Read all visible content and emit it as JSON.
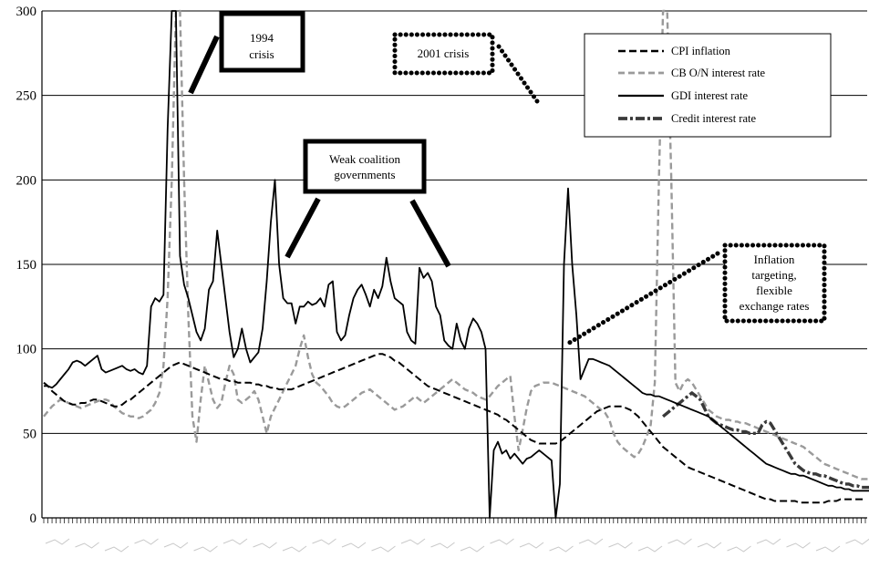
{
  "chart_data": {
    "type": "line",
    "title": "",
    "xlabel": "",
    "ylabel": "",
    "ylim": [
      0,
      300
    ],
    "yticks": [
      0,
      50,
      100,
      150,
      200,
      250,
      300
    ],
    "grid": "horizontal",
    "legend_position": "top-right",
    "n_points": 200,
    "series": [
      {
        "name": "CPI inflation",
        "style": "dashed-black",
        "color": "#000000",
        "values": [
          80,
          78,
          75,
          73,
          71,
          69,
          68,
          67,
          67,
          68,
          68,
          69,
          70,
          70,
          69,
          68,
          67,
          66,
          66,
          67,
          69,
          70,
          72,
          74,
          76,
          78,
          80,
          82,
          84,
          86,
          88,
          90,
          91,
          92,
          91,
          90,
          89,
          88,
          87,
          86,
          85,
          84,
          83,
          82,
          82,
          81,
          81,
          80,
          80,
          80,
          80,
          79,
          79,
          78,
          78,
          77,
          77,
          76,
          76,
          76,
          76,
          77,
          78,
          79,
          80,
          81,
          82,
          83,
          84,
          85,
          86,
          87,
          88,
          89,
          90,
          91,
          92,
          93,
          94,
          95,
          96,
          97,
          97,
          96,
          95,
          93,
          92,
          90,
          88,
          86,
          84,
          82,
          80,
          78,
          77,
          76,
          75,
          74,
          73,
          72,
          71,
          70,
          69,
          68,
          67,
          66,
          65,
          64,
          63,
          62,
          61,
          59,
          58,
          56,
          54,
          52,
          50,
          48,
          46,
          45,
          44,
          44,
          44,
          44,
          44,
          45,
          47,
          49,
          51,
          53,
          55,
          57,
          59,
          61,
          63,
          64,
          65,
          66,
          66,
          66,
          66,
          65,
          64,
          62,
          60,
          57,
          54,
          51,
          48,
          45,
          42,
          40,
          38,
          36,
          34,
          32,
          30,
          29,
          28,
          27,
          26,
          25,
          24,
          23,
          22,
          21,
          20,
          19,
          18,
          17,
          16,
          15,
          14,
          13,
          12,
          11,
          11,
          10,
          10,
          10,
          10,
          10,
          10,
          9,
          9,
          9,
          9,
          9,
          9,
          9,
          10,
          10,
          10,
          11,
          11,
          11,
          11,
          11,
          11,
          11
        ]
      },
      {
        "name": "CB O/N interest rate",
        "style": "dashed-grey",
        "color": "#9a9a9a",
        "values": [
          60,
          63,
          66,
          68,
          70,
          69,
          68,
          67,
          66,
          65,
          66,
          67,
          68,
          69,
          70,
          70,
          69,
          66,
          64,
          62,
          61,
          60,
          60,
          59,
          60,
          62,
          64,
          68,
          74,
          90,
          130,
          200,
          300,
          300,
          200,
          120,
          60,
          45,
          70,
          90,
          80,
          70,
          65,
          68,
          80,
          90,
          85,
          70,
          68,
          70,
          72,
          75,
          70,
          60,
          50,
          60,
          65,
          70,
          75,
          80,
          85,
          90,
          100,
          108,
          95,
          85,
          80,
          78,
          75,
          72,
          68,
          66,
          65,
          66,
          68,
          70,
          72,
          74,
          75,
          76,
          74,
          72,
          70,
          68,
          66,
          64,
          65,
          66,
          68,
          70,
          72,
          70,
          68,
          70,
          72,
          74,
          76,
          78,
          80,
          82,
          80,
          78,
          76,
          75,
          74,
          72,
          71,
          70,
          72,
          75,
          78,
          80,
          82,
          84,
          60,
          40,
          52,
          65,
          75,
          78,
          79,
          80,
          80,
          80,
          79,
          78,
          77,
          76,
          75,
          74,
          73,
          72,
          70,
          68,
          66,
          64,
          62,
          58,
          50,
          45,
          42,
          40,
          38,
          36,
          38,
          42,
          48,
          55,
          80,
          200,
          300,
          300,
          200,
          80,
          75,
          80,
          82,
          80,
          76,
          72,
          68,
          64,
          62,
          60,
          59,
          58,
          58,
          57,
          57,
          56,
          56,
          55,
          54,
          53,
          52,
          51,
          50,
          49,
          48,
          47,
          46,
          45,
          44,
          43,
          42,
          40,
          38,
          36,
          34,
          32,
          31,
          30,
          29,
          28,
          27,
          26,
          25,
          24,
          23,
          23,
          23,
          23,
          23,
          23,
          23
        ]
      },
      {
        "name": "GDI interest rate",
        "style": "solid-black",
        "color": "#000000",
        "values": [
          78,
          78,
          77,
          79,
          82,
          85,
          88,
          92,
          93,
          92,
          90,
          92,
          94,
          96,
          88,
          86,
          87,
          88,
          89,
          90,
          88,
          87,
          88,
          86,
          85,
          90,
          125,
          130,
          128,
          132,
          230,
          320,
          300,
          155,
          138,
          130,
          120,
          110,
          105,
          112,
          135,
          140,
          170,
          150,
          130,
          110,
          95,
          100,
          112,
          100,
          92,
          95,
          98,
          112,
          140,
          175,
          200,
          150,
          130,
          127,
          127,
          115,
          125,
          125,
          128,
          126,
          127,
          130,
          125,
          138,
          140,
          110,
          105,
          108,
          120,
          130,
          135,
          138,
          132,
          125,
          135,
          130,
          137,
          154,
          140,
          130,
          128,
          126,
          110,
          105,
          103,
          148,
          142,
          145,
          140,
          125,
          120,
          105,
          102,
          100,
          115,
          105,
          100,
          112,
          118,
          115,
          110,
          100,
          0,
          40,
          45,
          38,
          40,
          35,
          38,
          35,
          32,
          35,
          36,
          38,
          40,
          38,
          36,
          34,
          0,
          20,
          150,
          195,
          150,
          120,
          82,
          88,
          94,
          94,
          93,
          92,
          91,
          90,
          88,
          86,
          84,
          82,
          80,
          78,
          76,
          74,
          73,
          73,
          72,
          72,
          71,
          70,
          69,
          68,
          67,
          66,
          65,
          64,
          63,
          62,
          61,
          60,
          58,
          56,
          54,
          52,
          50,
          48,
          46,
          44,
          42,
          40,
          38,
          36,
          34,
          32,
          31,
          30,
          29,
          28,
          27,
          26,
          26,
          25,
          25,
          24,
          23,
          22,
          21,
          20,
          19,
          19,
          18,
          18,
          17,
          17,
          16,
          16,
          16,
          16,
          16
        ]
      },
      {
        "name": "Credit interest rate",
        "style": "thick-dashdot",
        "color": "#3a3a3a",
        "values": [
          null,
          null,
          null,
          null,
          null,
          null,
          null,
          null,
          null,
          null,
          null,
          null,
          null,
          null,
          null,
          null,
          null,
          null,
          null,
          null,
          null,
          null,
          null,
          null,
          null,
          null,
          null,
          null,
          null,
          null,
          null,
          null,
          null,
          null,
          null,
          null,
          null,
          null,
          null,
          null,
          null,
          null,
          null,
          null,
          null,
          null,
          null,
          null,
          null,
          null,
          null,
          null,
          null,
          null,
          null,
          null,
          null,
          null,
          null,
          null,
          null,
          null,
          null,
          null,
          null,
          null,
          null,
          null,
          null,
          null,
          null,
          null,
          null,
          null,
          null,
          null,
          null,
          null,
          null,
          null,
          null,
          null,
          null,
          null,
          null,
          null,
          null,
          null,
          null,
          null,
          null,
          null,
          null,
          null,
          null,
          null,
          null,
          null,
          null,
          null,
          null,
          null,
          null,
          null,
          null,
          null,
          null,
          null,
          null,
          null,
          null,
          null,
          null,
          null,
          null,
          null,
          null,
          null,
          null,
          null,
          null,
          null,
          null,
          null,
          null,
          null,
          null,
          null,
          null,
          null,
          null,
          null,
          null,
          null,
          null,
          null,
          null,
          null,
          null,
          null,
          null,
          null,
          null,
          null,
          null,
          null,
          null,
          null,
          null,
          null,
          60,
          62,
          64,
          66,
          68,
          70,
          72,
          74,
          72,
          70,
          65,
          60,
          58,
          56,
          55,
          54,
          53,
          52,
          52,
          51,
          51,
          50,
          50,
          50,
          55,
          57,
          56,
          52,
          48,
          44,
          40,
          36,
          32,
          30,
          28,
          27,
          26,
          26,
          25,
          25,
          24,
          23,
          22,
          21,
          20,
          20,
          19,
          19,
          18,
          18,
          18,
          18,
          24,
          24,
          23,
          23,
          22,
          22,
          22
        ]
      }
    ],
    "annotations": [
      {
        "id": "1994",
        "lines": [
          "1994",
          "crisis"
        ]
      },
      {
        "id": "2001",
        "lines": [
          "2001 crisis"
        ]
      },
      {
        "id": "weak",
        "lines": [
          "Weak coalition",
          "governments"
        ]
      },
      {
        "id": "infl",
        "lines": [
          "Inflation",
          "targeting,",
          "flexible",
          "exchange rates"
        ]
      }
    ]
  }
}
